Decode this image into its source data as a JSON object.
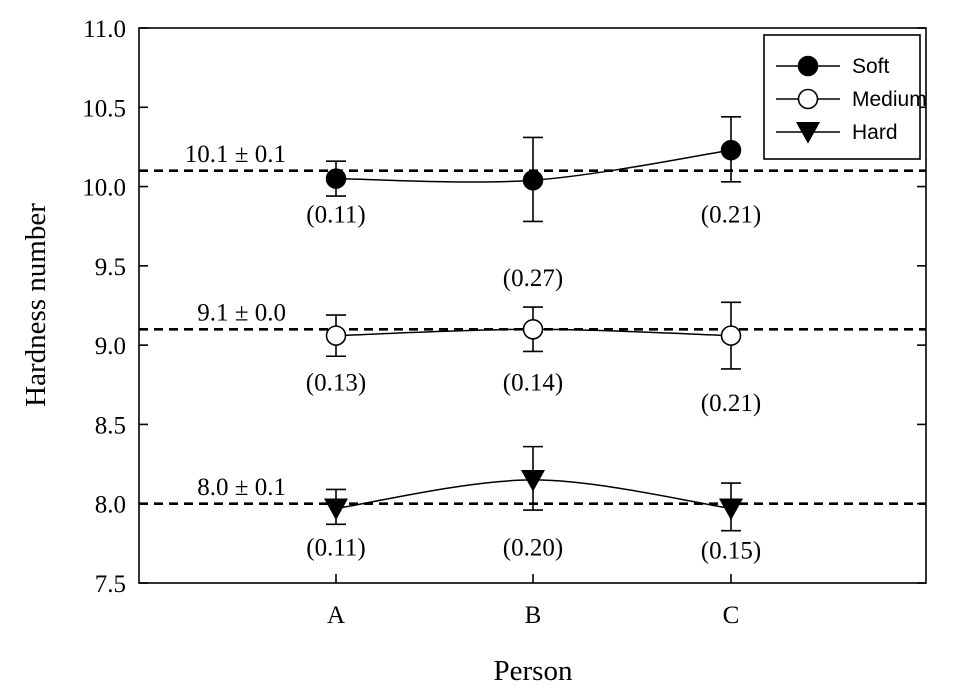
{
  "chart_data": {
    "type": "line",
    "xlabel": "Person",
    "ylabel": "Hardness number",
    "categories": [
      "A",
      "B",
      "C"
    ],
    "ylim": [
      7.5,
      11.0
    ],
    "yticks": [
      "7.5",
      "8.0",
      "8.5",
      "9.0",
      "9.5",
      "10.0",
      "10.5",
      "11.0"
    ],
    "legend_position": "top-right",
    "grid": false,
    "series": [
      {
        "name": "Soft",
        "marker": "filled-circle",
        "values": [
          10.05,
          10.04,
          10.23
        ],
        "error_low": [
          9.94,
          9.78,
          10.03
        ],
        "error_high": [
          10.16,
          10.31,
          10.44
        ],
        "labels": [
          "(0.11)",
          "(0.27)",
          "(0.21)"
        ],
        "label_y": [
          9.83,
          9.43,
          9.83
        ],
        "reference": {
          "value": 10.1,
          "text": "10.1 ± 0.1",
          "text_y": 10.2
        }
      },
      {
        "name": "Medium",
        "marker": "open-circle",
        "values": [
          9.06,
          9.1,
          9.06
        ],
        "error_low": [
          8.93,
          8.96,
          8.85
        ],
        "error_high": [
          9.19,
          9.24,
          9.27
        ],
        "labels": [
          "(0.13)",
          "(0.14)",
          "(0.21)"
        ],
        "label_y": [
          8.77,
          8.77,
          8.64
        ],
        "reference": {
          "value": 9.1,
          "text": "9.1 ± 0.0",
          "text_y": 9.2
        }
      },
      {
        "name": "Hard",
        "marker": "filled-triangle-down",
        "values": [
          7.97,
          8.15,
          7.97
        ],
        "error_low": [
          7.87,
          7.96,
          7.83
        ],
        "error_high": [
          8.09,
          8.36,
          8.13
        ],
        "labels": [
          "(0.11)",
          "(0.20)",
          "(0.15)"
        ],
        "label_y": [
          7.73,
          7.73,
          7.71
        ],
        "reference": {
          "value": 8.0,
          "text": "8.0 ± 0.1",
          "text_y": 8.1
        }
      }
    ]
  }
}
